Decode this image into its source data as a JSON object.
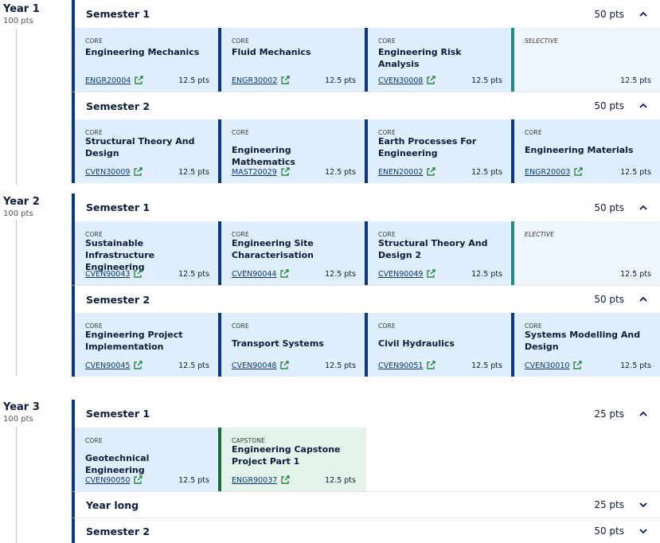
{
  "years": [
    {
      "label": "Year 1",
      "points": "100 pts",
      "semesters": [
        {
          "title": "Semester 1",
          "points": "50 pts",
          "expanded": true,
          "subjects": [
            {
              "type": "CORE",
              "name": "Engineering Mechanics",
              "code": "ENGR20004",
              "points": "12.5 pts"
            },
            {
              "type": "CORE",
              "name": "Fluid Mechanics",
              "code": "ENGR30002",
              "points": "12.5 pts"
            },
            {
              "type": "CORE",
              "name": "Engineering Risk Analysis",
              "code": "CVEN30008",
              "points": "12.5 pts"
            },
            {
              "type": "SELECTIVE",
              "name": "",
              "code": "",
              "points": "12.5 pts"
            }
          ]
        },
        {
          "title": "Semester 2",
          "points": "50 pts",
          "expanded": true,
          "subjects": [
            {
              "type": "CORE",
              "name": "Structural Theory And Design",
              "code": "CVEN30009",
              "points": "12.5 pts"
            },
            {
              "type": "CORE",
              "name": "Engineering Mathematics",
              "code": "MAST20029",
              "points": "12.5 pts"
            },
            {
              "type": "CORE",
              "name": "Earth Processes For Engineering",
              "code": "ENEN20002",
              "points": "12.5 pts"
            },
            {
              "type": "CORE",
              "name": "Engineering Materials",
              "code": "ENGR20003",
              "points": "12.5 pts"
            }
          ]
        }
      ]
    },
    {
      "label": "Year 2",
      "points": "100 pts",
      "semesters": [
        {
          "title": "Semester 1",
          "points": "50 pts",
          "expanded": true,
          "subjects": [
            {
              "type": "CORE",
              "name": "Sustainable Infrastructure Engineering",
              "code": "CVEN90043",
              "points": "12.5 pts"
            },
            {
              "type": "CORE",
              "name": "Engineering Site Characterisation",
              "code": "CVEN90044",
              "points": "12.5 pts"
            },
            {
              "type": "CORE",
              "name": "Structural Theory And Design 2",
              "code": "CVEN90049",
              "points": "12.5 pts"
            },
            {
              "type": "ELECTIVE",
              "name": "",
              "code": "",
              "points": "12.5 pts"
            }
          ]
        },
        {
          "title": "Semester 2",
          "points": "50 pts",
          "expanded": true,
          "subjects": [
            {
              "type": "CORE",
              "name": "Engineering Project Implementation",
              "code": "CVEN90045",
              "points": "12.5 pts"
            },
            {
              "type": "CORE",
              "name": "Transport Systems",
              "code": "CVEN90048",
              "points": "12.5 pts"
            },
            {
              "type": "CORE",
              "name": "Civil Hydraulics",
              "code": "CVEN90051",
              "points": "12.5 pts"
            },
            {
              "type": "CORE",
              "name": "Systems Modelling And Design",
              "code": "CVEN30010",
              "points": "12.5 pts"
            }
          ]
        }
      ]
    },
    {
      "label": "Year 3",
      "points": "100 pts",
      "semesters": [
        {
          "title": "Semester 1",
          "points": "25 pts",
          "expanded": true,
          "subjects": [
            {
              "type": "CORE",
              "name": "Geotechnical Engineering",
              "code": "CVEN90050",
              "points": "12.5 pts"
            },
            {
              "type": "CAPSTONE",
              "name": "Engineering Capstone Project Part 1",
              "code": "ENGR90037",
              "points": "12.5 pts"
            }
          ]
        },
        {
          "title": "Year long",
          "points": "25 pts",
          "expanded": false,
          "subjects": []
        },
        {
          "title": "Semester 2",
          "points": "50 pts",
          "expanded": false,
          "subjects": []
        }
      ]
    }
  ],
  "colors": {
    "core_bg": "#e0efff",
    "core_border": "#0a3a7a",
    "selective_border": "#1d8b8b",
    "capstone_bg": "#e3f3ea",
    "capstone_border": "#176b3a"
  }
}
